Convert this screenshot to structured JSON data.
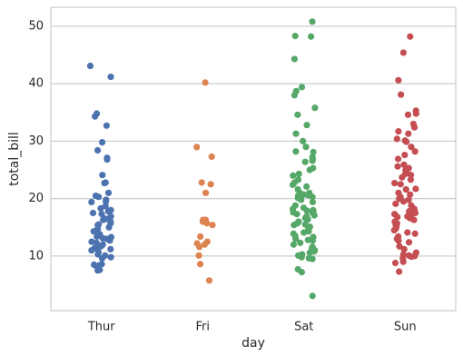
{
  "chart_data": {
    "type": "strip",
    "x_label": "day",
    "y_label": "total_bill",
    "categories": [
      "Thur",
      "Fri",
      "Sat",
      "Sun"
    ],
    "colors": [
      "#4c72b0",
      "#dd8452",
      "#55a868",
      "#c44e52"
    ],
    "values": [
      [
        43.1,
        41.2,
        34.8,
        34.3,
        32.7,
        29.8,
        28.4,
        27.1,
        26.8,
        24.1,
        22.8,
        22.7,
        21.0,
        20.5,
        20.3,
        19.8,
        19.5,
        19.4,
        18.7,
        18.3,
        18.0,
        17.8,
        17.5,
        17.3,
        16.9,
        16.5,
        16.4,
        16.3,
        16.0,
        15.7,
        15.5,
        15.4,
        15.0,
        14.7,
        14.3,
        14.2,
        13.8,
        13.4,
        13.3,
        13.1,
        13.0,
        12.7,
        12.5,
        12.3,
        12.0,
        11.8,
        11.6,
        11.4,
        11.2,
        11.0,
        10.7,
        10.3,
        10.1,
        9.8,
        8.6,
        8.5,
        8.4,
        8.2,
        7.7,
        7.6,
        7.5,
        9.6
      ],
      [
        40.2,
        28.97,
        27.3,
        22.8,
        22.5,
        21.0,
        16.3,
        16.3,
        16.0,
        15.7,
        15.4,
        13.4,
        12.5,
        12.2,
        12.0,
        11.6,
        10.1,
        8.6,
        5.75
      ],
      [
        50.8,
        48.3,
        48.2,
        44.3,
        39.4,
        38.7,
        38.0,
        35.8,
        34.6,
        32.8,
        31.3,
        30.0,
        29.0,
        28.2,
        28.1,
        27.2,
        26.9,
        26.6,
        25.3,
        25.0,
        24.3,
        24.0,
        23.3,
        22.8,
        22.4,
        22.1,
        21.6,
        21.0,
        20.7,
        20.6,
        20.5,
        20.3,
        20.1,
        19.8,
        19.4,
        18.8,
        18.4,
        18.2,
        18.0,
        17.9,
        17.8,
        17.6,
        17.5,
        17.3,
        17.1,
        16.6,
        16.4,
        16.0,
        15.8,
        15.7,
        15.5,
        15.4,
        15.1,
        14.8,
        14.3,
        14.1,
        13.9,
        13.5,
        13.3,
        13.0,
        12.8,
        12.7,
        12.0,
        11.6,
        11.4,
        11.0,
        10.8,
        10.6,
        10.3,
        10.1,
        9.6,
        9.5,
        9.8,
        7.7,
        7.2,
        3.07,
        26.4,
        20.9,
        16.9,
        15.0,
        12.3
      ],
      [
        48.2,
        45.4,
        40.6,
        38.1,
        35.3,
        34.8,
        34.6,
        33.0,
        32.4,
        31.7,
        31.3,
        30.4,
        30.1,
        29.9,
        29.0,
        28.2,
        27.6,
        26.9,
        25.9,
        25.6,
        25.3,
        25.0,
        24.6,
        24.3,
        24.1,
        23.7,
        23.3,
        22.7,
        22.5,
        21.6,
        21.0,
        20.7,
        20.3,
        20.0,
        19.8,
        19.5,
        19.1,
        18.8,
        18.4,
        18.2,
        18.0,
        17.8,
        17.5,
        17.3,
        17.1,
        16.9,
        16.6,
        16.3,
        16.0,
        15.7,
        15.4,
        15.1,
        14.8,
        14.5,
        14.1,
        13.9,
        13.4,
        13.0,
        12.7,
        12.4,
        11.7,
        11.2,
        10.6,
        10.3,
        10.1,
        9.9,
        9.6,
        9.0,
        8.8,
        7.3,
        17.9,
        21.7,
        16.8,
        10.0
      ]
    ],
    "ylim": [
      0.5,
      53.3
    ],
    "yticks": [
      10,
      20,
      30,
      40,
      50
    ],
    "grid": true
  }
}
